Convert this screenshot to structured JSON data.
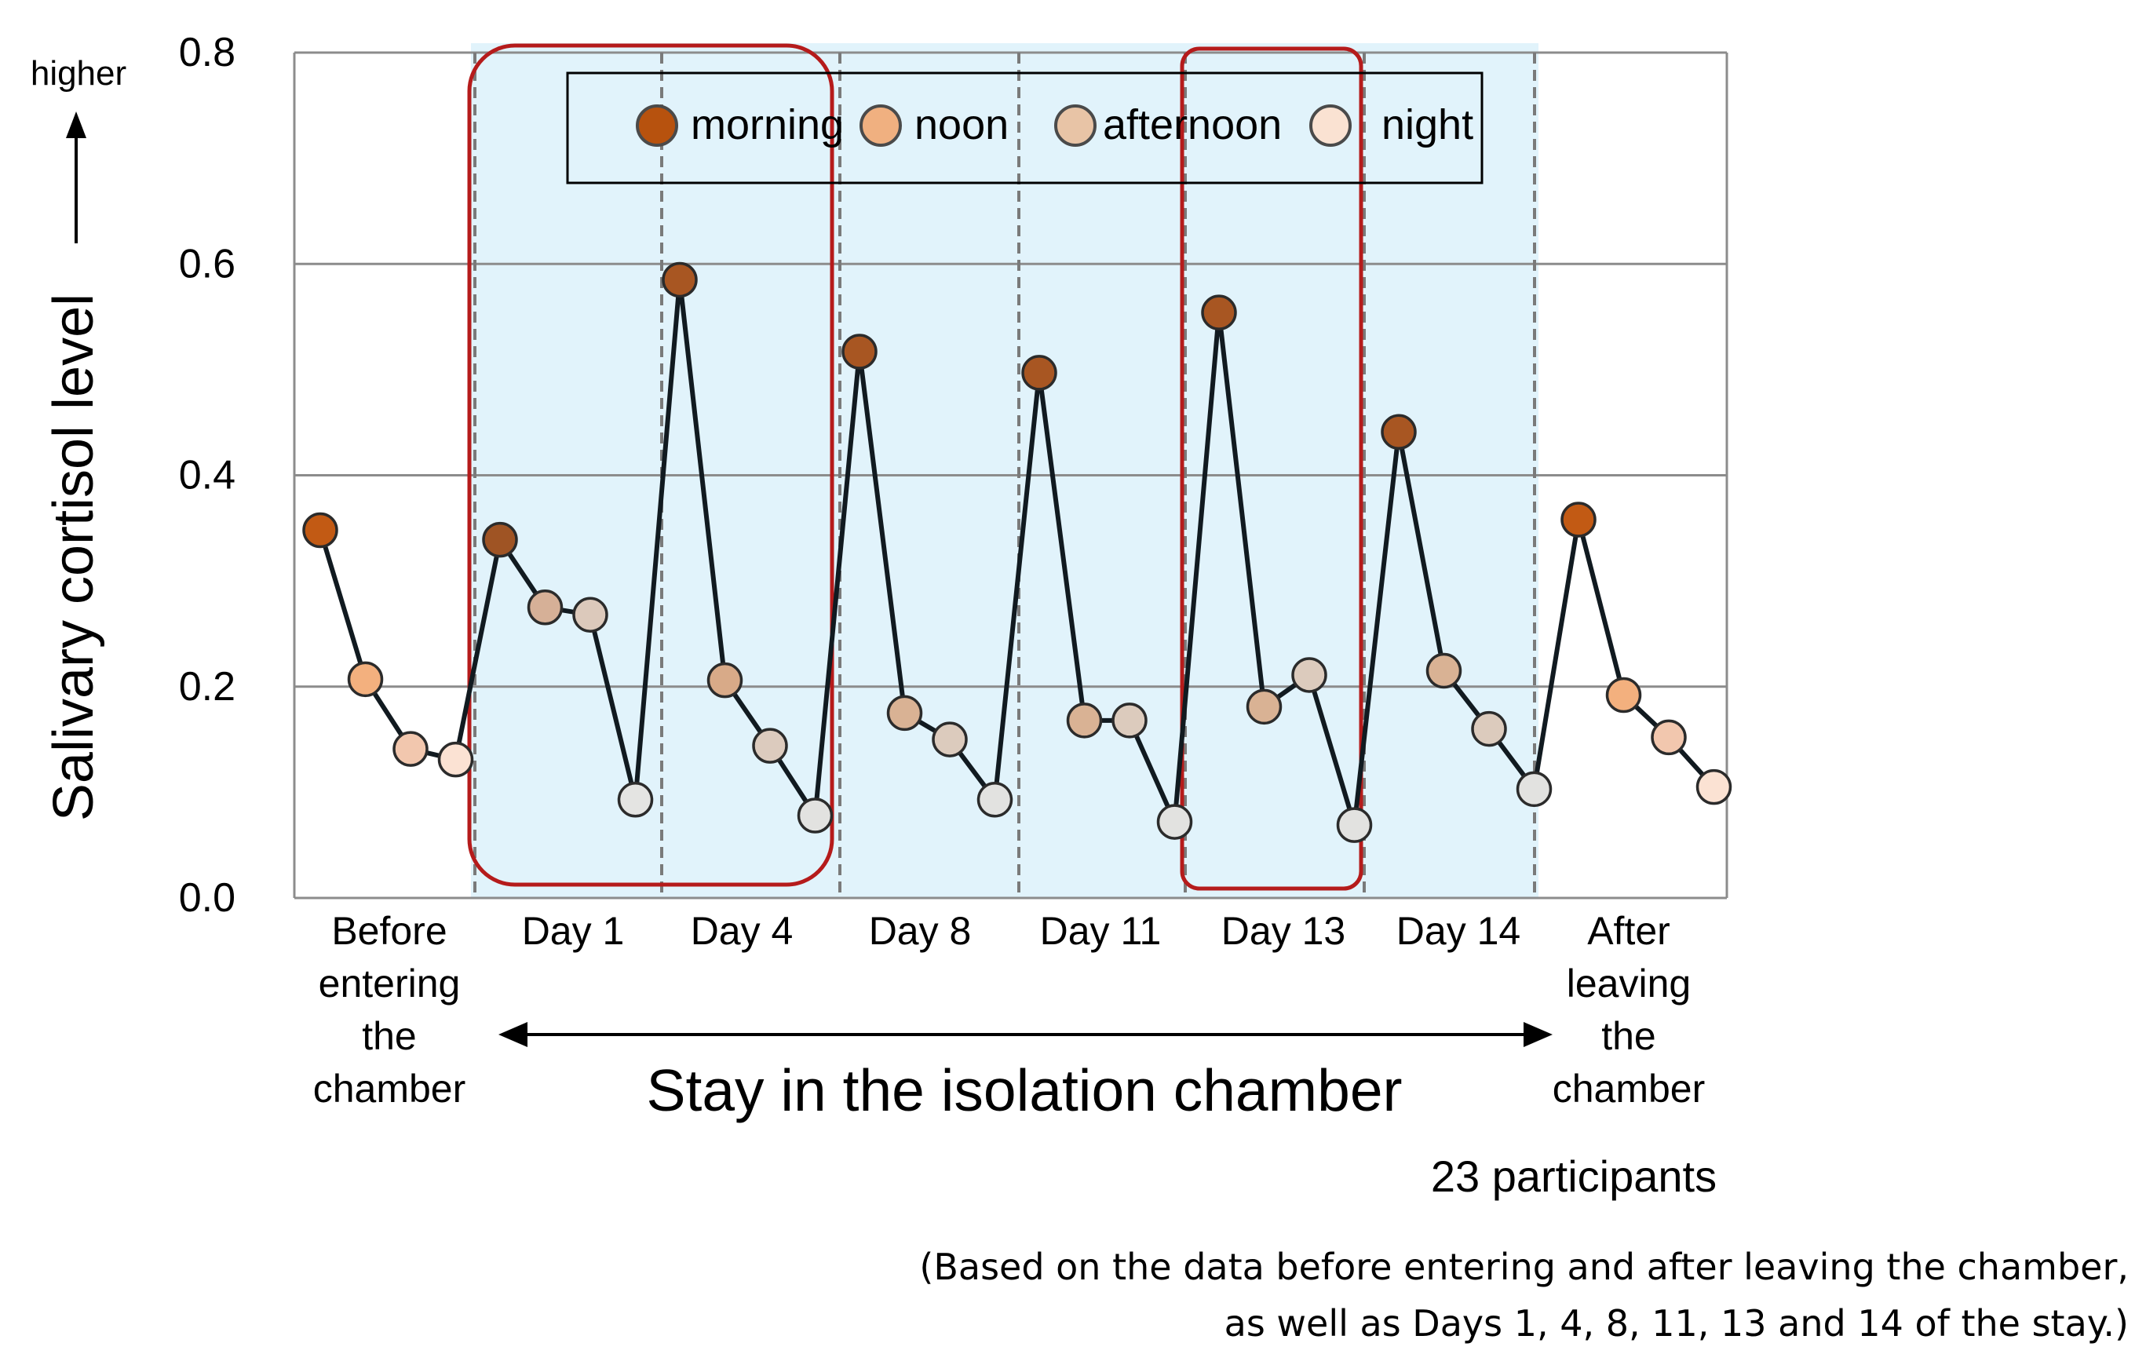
{
  "chart_data": {
    "type": "line",
    "ylabel": "Salivary cortisol level",
    "y_direction_label": "higher",
    "ylim": [
      0,
      0.8
    ],
    "y_ticks": [
      "0.0",
      "0.2",
      "0.4",
      "0.6",
      "0.8"
    ],
    "grid": true,
    "legend": {
      "position": "top-center",
      "entries": [
        {
          "name": "morning",
          "color": "#b7520e"
        },
        {
          "name": "noon",
          "color": "#f0b080"
        },
        {
          "name": "afternoon",
          "color": "#e8c4a6"
        },
        {
          "name": "night",
          "color": "#fae2d2"
        }
      ]
    },
    "groups": [
      {
        "label": "Before entering the chamber",
        "label_lines": [
          "Before",
          "entering",
          "the",
          "chamber"
        ],
        "values": [
          0.348,
          0.207,
          0.141,
          0.131
        ],
        "shaded": false,
        "colors": [
          "#c25a14",
          "#f3b07e",
          "#f2c7ae",
          "#fbe2d3"
        ]
      },
      {
        "label": "Day 1",
        "label_lines": [
          "Day 1"
        ],
        "values": [
          0.339,
          0.275,
          0.268,
          0.093
        ],
        "shaded": true,
        "colors": [
          "#9f5424",
          "#d6b097",
          "#dcc9bb",
          "#e4e4e2"
        ]
      },
      {
        "label": "Day 4",
        "label_lines": [
          "Day 4"
        ],
        "values": [
          0.585,
          0.206,
          0.144,
          0.078
        ],
        "shaded": true,
        "colors": [
          "#a85622",
          "#d8aa88",
          "#dccbbe",
          "#e2e2e0"
        ]
      },
      {
        "label": "Day 8",
        "label_lines": [
          "Day 8"
        ],
        "values": [
          0.517,
          0.175,
          0.15,
          0.093
        ],
        "shaded": true,
        "colors": [
          "#a85622",
          "#d9b294",
          "#dccbbd",
          "#e2e2e0"
        ]
      },
      {
        "label": "Day 11",
        "label_lines": [
          "Day 11"
        ],
        "values": [
          0.497,
          0.168,
          0.168,
          0.072
        ],
        "shaded": true,
        "colors": [
          "#a85622",
          "#d9b294",
          "#dccbbd",
          "#e2e2e0"
        ]
      },
      {
        "label": "Day 13",
        "label_lines": [
          "Day 13"
        ],
        "values": [
          0.554,
          0.181,
          0.211,
          0.069
        ],
        "shaded": true,
        "colors": [
          "#a85622",
          "#d9b294",
          "#dccbbd",
          "#e2e2e0"
        ]
      },
      {
        "label": "Day 14",
        "label_lines": [
          "Day 14"
        ],
        "values": [
          0.441,
          0.215,
          0.16,
          0.103
        ],
        "shaded": true,
        "colors": [
          "#a85622",
          "#d9b294",
          "#dccbbd",
          "#e2e2e0"
        ]
      },
      {
        "label": "After leaving the chamber",
        "label_lines": [
          "After",
          "leaving",
          "the",
          "chamber"
        ],
        "values": [
          0.358,
          0.192,
          0.152,
          0.105
        ],
        "shaded": false,
        "colors": [
          "#c25a14",
          "#f3b07e",
          "#f2c7ae",
          "#fbe2d3"
        ]
      }
    ],
    "highlighted_groups": [
      "Day 1",
      "Day 4",
      "Day 13"
    ],
    "span_label": "Stay in the isolation chamber",
    "participants_note": "23 participants",
    "footnote_lines": [
      "(Based on the data before entering and after leaving the chamber,",
      "as well as Days 1, 4, 8, 11, 13 and 14 of the stay.)"
    ],
    "colors": {
      "shade": "#e1f3fb",
      "highlight_box": "#b51b1b",
      "grid": "#8c8c8c",
      "line": "#111a20"
    }
  }
}
